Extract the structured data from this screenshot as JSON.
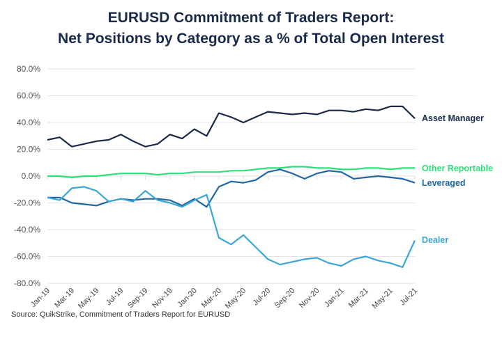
{
  "chart_data": {
    "type": "line",
    "title": [
      "EURUSD Commitment of Traders Report:",
      "Net Positions by Category as a % of Total Open Interest"
    ],
    "source": "Source: QuikStrike, Commitment of Traders Report for EURUSD",
    "x": [
      "Jan-19",
      "Feb-19",
      "Mar-19",
      "Apr-19",
      "May-19",
      "Jun-19",
      "Jul-19",
      "Aug-19",
      "Sep-19",
      "Oct-19",
      "Nov-19",
      "Dec-19",
      "Jan-20",
      "Feb-20",
      "Mar-20",
      "Apr-20",
      "May-20",
      "Jun-20",
      "Jul-20",
      "Aug-20",
      "Sep-20",
      "Oct-20",
      "Nov-20",
      "Dec-20",
      "Jan-21",
      "Feb-21",
      "Mar-21",
      "Apr-21",
      "May-21",
      "Jun-21",
      "Jul-21"
    ],
    "x_tick_labels": [
      "Jan-19",
      "Mar-19",
      "May-19",
      "Jul-19",
      "Sep-19",
      "Nov-19",
      "Jan-20",
      "Mar-20",
      "May-20",
      "Jul-20",
      "Sep-20",
      "Nov-20",
      "Jan-21",
      "Mar-21",
      "May-21",
      "Jul-21"
    ],
    "y_tick_labels": [
      "80.0%",
      "60.0%",
      "40.0%",
      "20.0%",
      "0.0%",
      "-20.0%",
      "-40.0%",
      "-60.0%",
      "-80.0%"
    ],
    "ylim": [
      -80,
      80
    ],
    "grid": true,
    "legend": "direct labels at right end of lines",
    "series": [
      {
        "name": "Asset Manager",
        "color": "#1a2a4a",
        "values": [
          27,
          29,
          22,
          24,
          26,
          27,
          31,
          26,
          22,
          24,
          31,
          28,
          35,
          30,
          47,
          44,
          40,
          44,
          48,
          47,
          46,
          47,
          46,
          49,
          49,
          48,
          50,
          49,
          52,
          52,
          43
        ]
      },
      {
        "name": "Other Reportable",
        "color": "#2fe07a",
        "values": [
          0,
          0,
          -1,
          0,
          0,
          1,
          2,
          2,
          2,
          1,
          2,
          2,
          3,
          3,
          3,
          4,
          4,
          5,
          6,
          6,
          7,
          7,
          6,
          6,
          5,
          5,
          6,
          6,
          5,
          6,
          6
        ]
      },
      {
        "name": "Leveraged",
        "color": "#1f66a3",
        "values": [
          -16,
          -16,
          -20,
          -21,
          -22,
          -19,
          -17,
          -18,
          -17,
          -17,
          -18,
          -22,
          -17,
          -23,
          -8,
          -4,
          -5,
          -3,
          3,
          5,
          2,
          -2,
          2,
          4,
          3,
          -2,
          -1,
          0,
          -1,
          -2,
          -5
        ]
      },
      {
        "name": "Dealer",
        "color": "#3aa6d8",
        "values": [
          -16,
          -18,
          -9,
          -8,
          -11,
          -19,
          -17,
          -19,
          -11,
          -18,
          -20,
          -23,
          -18,
          -14,
          -46,
          -51,
          -44,
          -53,
          -62,
          -66,
          -64,
          -62,
          -61,
          -65,
          -67,
          -62,
          -60,
          -63,
          -65,
          -68,
          -48
        ]
      }
    ]
  }
}
